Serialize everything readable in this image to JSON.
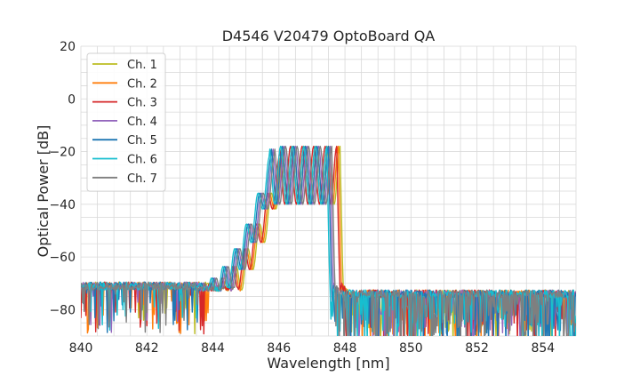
{
  "chart_data": {
    "type": "line",
    "title": "D4546 V20479 OptoBoard QA",
    "xlabel": "Wavelength [nm]",
    "ylabel": "Optical Power [dB]",
    "xlim": [
      840,
      855
    ],
    "ylim": [
      -90,
      20
    ],
    "xticks": [
      840,
      842,
      844,
      846,
      848,
      850,
      852,
      854
    ],
    "yticks": [
      -80,
      -60,
      -40,
      -20,
      0,
      20
    ],
    "grid": true,
    "legend_position": "top-left",
    "series": [
      {
        "name": "Ch. 1",
        "color": "#bcbd22",
        "shift_nm": 0.3
      },
      {
        "name": "Ch. 2",
        "color": "#ff7f0e",
        "shift_nm": 0.25
      },
      {
        "name": "Ch. 3",
        "color": "#d62728",
        "shift_nm": 0.2
      },
      {
        "name": "Ch. 4",
        "color": "#9467bd",
        "shift_nm": 0.0
      },
      {
        "name": "Ch. 5",
        "color": "#1f77b4",
        "shift_nm": -0.05
      },
      {
        "name": "Ch. 6",
        "color": "#17becf",
        "shift_nm": -0.1
      },
      {
        "name": "Ch. 7",
        "color": "#7f7f7f",
        "shift_nm": 0.05
      }
    ],
    "envelope": {
      "noise_floor_left": -71,
      "noise_floor_right": -74,
      "peak_level": -17,
      "passband_start": 845.8,
      "passband_end": 847.6,
      "ripple_period_nm": 0.35,
      "ripple_depth_db": 22
    }
  }
}
